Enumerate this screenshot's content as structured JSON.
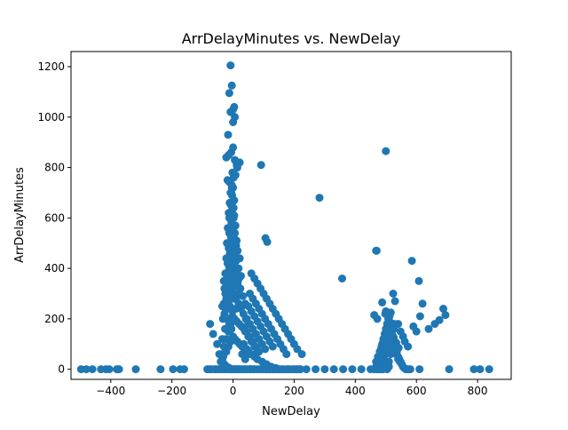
{
  "chart_data": {
    "type": "scatter",
    "title": "ArrDelayMinutes vs. NewDelay",
    "xlabel": "NewDelay",
    "ylabel": "ArrDelayMinutes",
    "xlim": [
      -530,
      910
    ],
    "ylim": [
      -40,
      1260
    ],
    "xticks": [
      -400,
      -200,
      0,
      200,
      400,
      600,
      800
    ],
    "xtick_labels": [
      "−400",
      "−200",
      "0",
      "200",
      "400",
      "600",
      "800"
    ],
    "yticks": [
      0,
      200,
      400,
      600,
      800,
      1000,
      1200
    ],
    "ytick_labels": [
      "0",
      "200",
      "400",
      "600",
      "800",
      "1000",
      "1200"
    ],
    "grid": false,
    "legend": "none",
    "marker_color": "#1f77b4",
    "series": [
      {
        "x": [
          -497,
          -480,
          -460,
          -432,
          -416,
          -405,
          -380,
          -373,
          -318,
          -237,
          -196,
          -173,
          -160,
          -84,
          -77,
          -70,
          -60,
          -55,
          -48,
          -40,
          -32,
          -25,
          -18,
          -10,
          -5,
          5,
          12,
          20,
          30,
          40,
          55,
          70,
          90,
          110,
          130,
          150,
          180,
          210,
          240,
          270,
          300,
          330,
          360,
          390,
          420,
          450,
          470,
          -75,
          -65,
          -52,
          -45,
          -35,
          -28,
          -20,
          -12,
          -6,
          2,
          8,
          15,
          22,
          30,
          38,
          45,
          55,
          62,
          70,
          80,
          90,
          100,
          110,
          120,
          130,
          140,
          150,
          160,
          170,
          180,
          190,
          200,
          210,
          220,
          -40,
          -32,
          -22,
          -15,
          -8,
          0,
          6,
          14,
          22,
          30,
          40,
          50,
          60,
          70,
          80,
          95,
          110,
          125,
          140,
          -38,
          -30,
          -22,
          -15,
          -8,
          -2,
          5,
          12,
          20,
          28,
          36,
          44,
          55,
          65,
          75,
          85,
          -35,
          -26,
          -18,
          -10,
          -4,
          4,
          10,
          18,
          26,
          34,
          42,
          50,
          -33,
          -25,
          -17,
          -9,
          -3,
          3,
          9,
          16,
          24,
          32,
          40,
          -30,
          -22,
          -15,
          -8,
          -2,
          4,
          10,
          18,
          26,
          -28,
          -20,
          -12,
          -5,
          2,
          8,
          15,
          22,
          -25,
          -18,
          -10,
          -4,
          3,
          10,
          -22,
          -14,
          -6,
          0,
          6,
          12,
          -20,
          -12,
          -5,
          2,
          8,
          -17,
          -10,
          -3,
          4,
          -14,
          -6,
          2,
          -11,
          -3,
          4,
          -8,
          0,
          -30,
          -20,
          -12,
          -5,
          0,
          5,
          12,
          20,
          -25,
          -18,
          -10,
          -3,
          2,
          8,
          15,
          -35,
          -22,
          -15,
          -8,
          0,
          6,
          14,
          -28,
          -16,
          -4,
          4,
          10,
          -20,
          -10,
          0,
          -12,
          -2,
          -5,
          -18,
          -10,
          -4,
          2,
          8,
          14,
          22,
          -22,
          -14,
          -6,
          0,
          6,
          12,
          -16,
          -8,
          0,
          6,
          -12,
          -4,
          4,
          -8,
          0,
          -4,
          -2,
          -6,
          -3,
          -12,
          -6,
          92,
          106,
          112,
          283,
          357,
          468,
          60,
          70,
          80,
          90,
          100,
          110,
          120,
          130,
          140,
          150,
          160,
          170,
          180,
          190,
          200,
          210,
          225,
          55,
          65,
          75,
          85,
          95,
          105,
          115,
          125,
          135,
          145,
          155,
          165,
          175,
          50,
          60,
          70,
          80,
          90,
          100,
          110,
          120,
          130,
          45,
          55,
          65,
          75,
          85,
          95,
          105,
          40,
          50,
          60,
          70,
          80,
          35,
          45,
          55,
          30,
          40,
          58,
          120,
          140,
          160,
          180,
          200,
          220,
          462,
          468,
          472,
          476,
          480,
          484,
          488,
          492,
          496,
          500,
          504,
          508,
          512,
          516,
          520,
          524,
          528,
          532,
          536,
          540,
          544,
          548,
          552,
          556,
          560,
          565,
          570,
          575,
          580,
          468,
          474,
          480,
          486,
          492,
          498,
          504,
          510,
          516,
          522,
          528,
          534,
          540,
          546,
          552,
          470,
          478,
          486,
          494,
          502,
          510,
          518,
          526,
          534,
          542,
          472,
          480,
          488,
          496,
          504,
          512,
          520,
          528,
          476,
          484,
          492,
          500,
          508,
          516,
          480,
          490,
          500,
          510,
          486,
          498,
          510,
          490,
          504,
          462,
          472,
          488,
          500,
          516,
          524,
          530,
          540,
          548,
          556,
          562,
          572,
          498,
          512,
          528,
          526,
          585,
          608,
          612,
          620,
          640,
          660,
          675,
          688,
          695,
          590,
          600,
          470,
          500,
          610,
          707,
          788,
          808,
          838
        ],
        "y": [
          0,
          0,
          0,
          0,
          0,
          0,
          0,
          0,
          0,
          0,
          0,
          0,
          0,
          0,
          0,
          0,
          0,
          0,
          0,
          0,
          0,
          0,
          0,
          0,
          0,
          0,
          0,
          0,
          0,
          0,
          0,
          0,
          0,
          0,
          0,
          0,
          0,
          0,
          0,
          0,
          0,
          0,
          0,
          0,
          0,
          0,
          0,
          180,
          140,
          100,
          60,
          40,
          20,
          10,
          5,
          0,
          0,
          0,
          0,
          0,
          0,
          0,
          0,
          0,
          0,
          0,
          0,
          0,
          0,
          0,
          0,
          0,
          0,
          0,
          0,
          0,
          0,
          0,
          0,
          0,
          0,
          30,
          50,
          70,
          90,
          110,
          130,
          120,
          110,
          100,
          90,
          80,
          70,
          60,
          50,
          40,
          30,
          20,
          10,
          5,
          60,
          90,
          120,
          150,
          180,
          210,
          200,
          190,
          180,
          170,
          160,
          150,
          130,
          110,
          90,
          70,
          120,
          160,
          200,
          240,
          280,
          300,
          280,
          260,
          240,
          220,
          200,
          180,
          200,
          240,
          280,
          320,
          360,
          400,
          380,
          350,
          320,
          290,
          260,
          260,
          300,
          340,
          380,
          420,
          450,
          430,
          400,
          370,
          320,
          360,
          400,
          440,
          480,
          500,
          470,
          440,
          380,
          420,
          460,
          500,
          520,
          490,
          440,
          480,
          520,
          560,
          540,
          510,
          500,
          540,
          580,
          600,
          570,
          560,
          600,
          630,
          610,
          620,
          650,
          640,
          660,
          690,
          670,
          700,
          720,
          350,
          380,
          410,
          440,
          460,
          420,
          390,
          360,
          300,
          330,
          360,
          390,
          420,
          380,
          340,
          250,
          280,
          310,
          340,
          370,
          330,
          300,
          220,
          260,
          300,
          280,
          240,
          200,
          250,
          300,
          180,
          230,
          160,
          750,
          740,
          730,
          760,
          770,
          800,
          820,
          840,
          850,
          860,
          880,
          830,
          810,
          930,
          1020,
          1030,
          1000,
          1095,
          1125,
          1040,
          1205,
          980,
          720,
          780,
          700,
          660,
          600,
          560,
          810,
          520,
          505,
          680,
          360,
          470,
          380,
          360,
          340,
          320,
          300,
          280,
          260,
          240,
          220,
          200,
          180,
          160,
          140,
          120,
          100,
          80,
          60,
          300,
          280,
          260,
          240,
          220,
          200,
          180,
          160,
          140,
          120,
          100,
          80,
          60,
          250,
          230,
          210,
          190,
          170,
          150,
          130,
          110,
          90,
          200,
          180,
          160,
          140,
          120,
          100,
          80,
          150,
          130,
          110,
          90,
          70,
          100,
          80,
          60,
          60,
          40,
          0,
          0,
          0,
          0,
          0,
          0,
          0,
          0,
          10,
          20,
          40,
          60,
          80,
          100,
          120,
          140,
          160,
          180,
          200,
          190,
          170,
          150,
          130,
          110,
          90,
          70,
          50,
          40,
          30,
          20,
          10,
          5,
          0,
          0,
          0,
          0,
          30,
          50,
          70,
          90,
          110,
          130,
          150,
          140,
          120,
          100,
          80,
          60,
          40,
          30,
          20,
          15,
          35,
          55,
          75,
          95,
          115,
          135,
          125,
          105,
          85,
          5,
          25,
          45,
          65,
          85,
          105,
          95,
          75,
          0,
          20,
          40,
          60,
          80,
          60,
          0,
          10,
          20,
          30,
          0,
          5,
          10,
          0,
          0,
          215,
          200,
          265,
          230,
          225,
          300,
          270,
          180,
          150,
          130,
          110,
          90,
          220,
          210,
          180,
          160,
          430,
          350,
          210,
          260,
          160,
          180,
          195,
          240,
          215,
          170,
          150,
          470,
          865,
          0,
          0,
          0,
          0,
          0
        ]
      }
    ]
  }
}
